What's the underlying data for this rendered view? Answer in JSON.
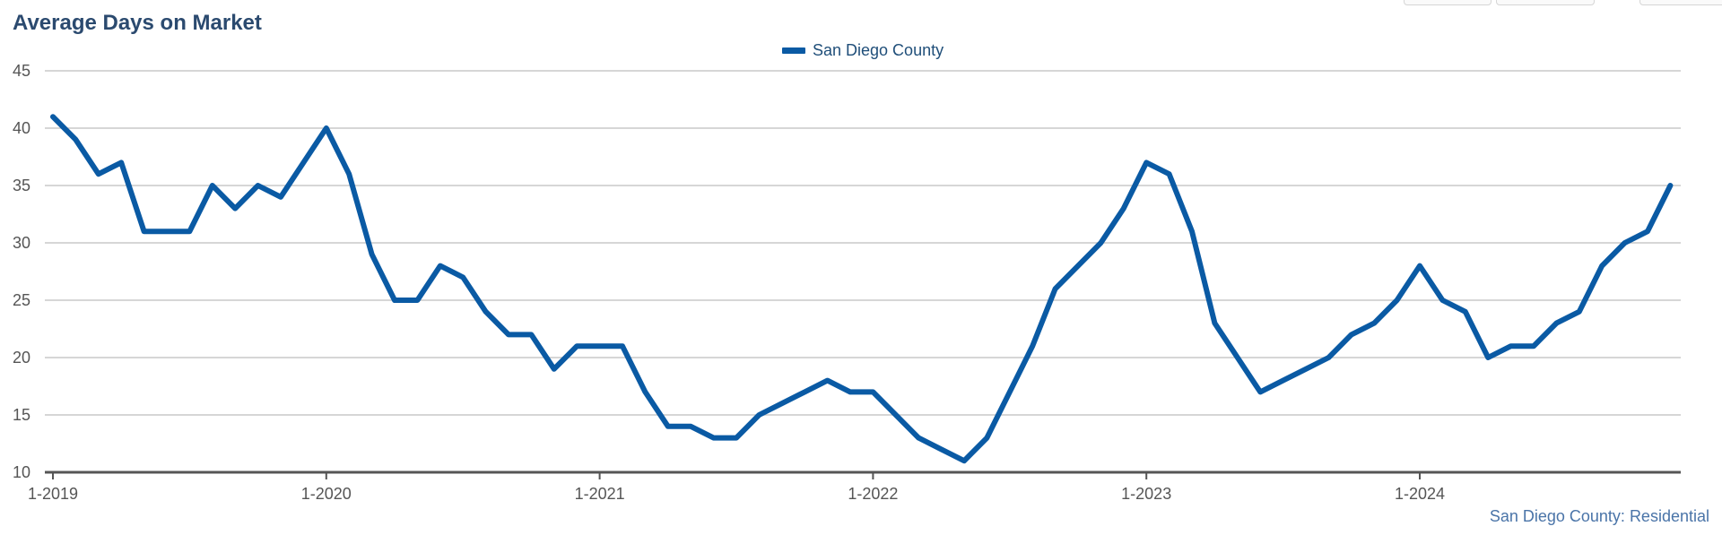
{
  "title": "Average Days on Market",
  "credit": "San Diego County: Residential",
  "colors": {
    "series": "#0a5aa4",
    "grid": "#c8c8c8",
    "axis": "#555555"
  },
  "chart_data": {
    "type": "line",
    "title": "Average Days on Market",
    "xlabel": "",
    "ylabel": "",
    "ylim": [
      10,
      45
    ],
    "yticks": [
      10,
      15,
      20,
      25,
      30,
      35,
      40,
      45
    ],
    "grid": true,
    "legend": "top-center",
    "xticks": [
      {
        "index": 0,
        "label": "1-2019"
      },
      {
        "index": 12,
        "label": "1-2020"
      },
      {
        "index": 24,
        "label": "1-2021"
      },
      {
        "index": 36,
        "label": "1-2022"
      },
      {
        "index": 48,
        "label": "1-2023"
      },
      {
        "index": 60,
        "label": "1-2024"
      }
    ],
    "series": [
      {
        "name": "San Diego County",
        "values": [
          41,
          39,
          36,
          37,
          31,
          31,
          31,
          35,
          33,
          35,
          34,
          37,
          40,
          36,
          29,
          25,
          25,
          28,
          27,
          24,
          22,
          22,
          19,
          21,
          21,
          21,
          17,
          14,
          14,
          13,
          13,
          15,
          16,
          17,
          18,
          17,
          17,
          15,
          13,
          12,
          11,
          13,
          17,
          21,
          26,
          28,
          30,
          33,
          37,
          36,
          31,
          23,
          20,
          17,
          18,
          19,
          20,
          22,
          23,
          25,
          28,
          25,
          24,
          20,
          21,
          21,
          23,
          24,
          28,
          30,
          31,
          35
        ]
      }
    ]
  }
}
